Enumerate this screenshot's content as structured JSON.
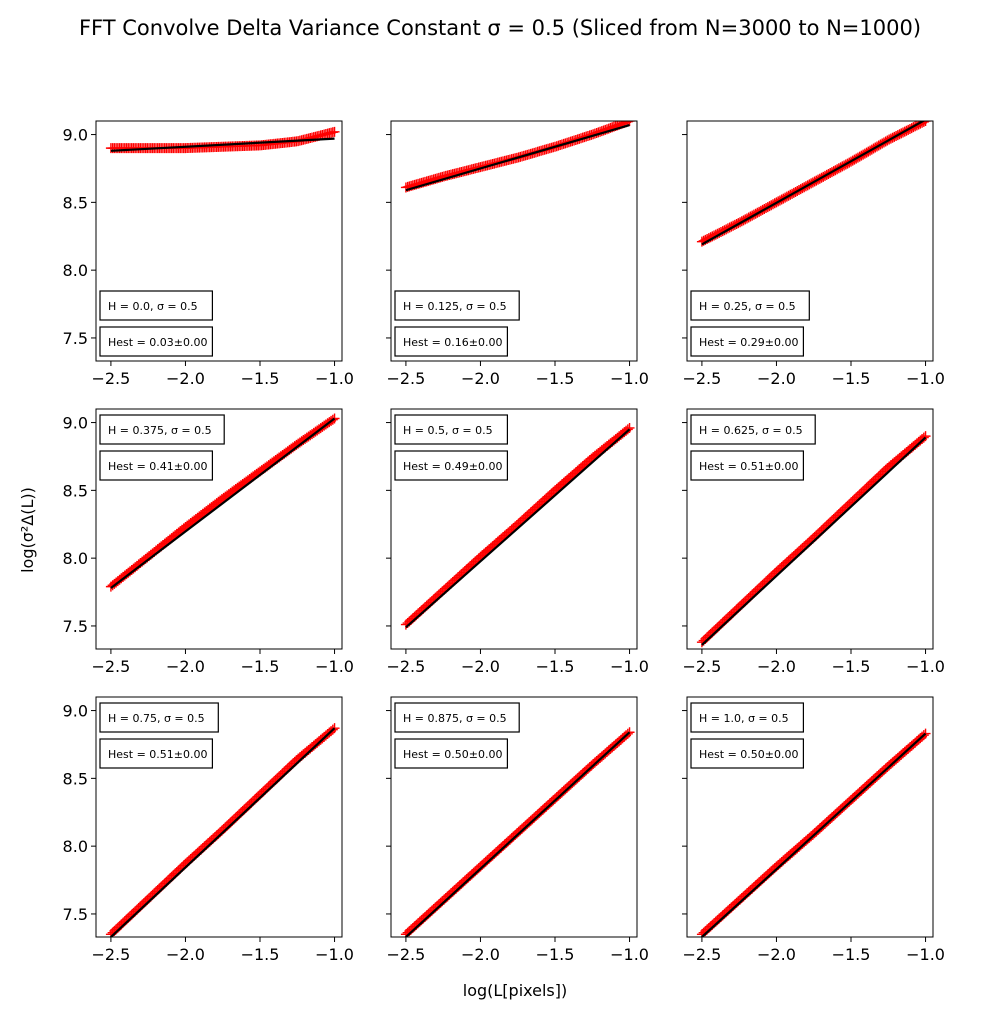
{
  "figure": {
    "title": "FFT Convolve Delta Variance Constant σ = 0.5 (Sliced from N=3000 to N=1000)",
    "xlabel": "log(L[pixels])",
    "ylabel": "log(σ²Δ(L))"
  },
  "colors": {
    "data": "#ff0000",
    "fit": "#000000",
    "axes": "#000000",
    "background": "#ffffff"
  },
  "chart_data": [
    {
      "type": "line",
      "marker": "+",
      "H_label": "H = 0.0, σ = 0.5",
      "Hest_label": "Hest = 0.03±0.00",
      "legend_position": "bottom-left",
      "x_range": [
        -2.5,
        -1.0
      ],
      "data_y": [
        8.9,
        8.9,
        8.9,
        8.91,
        8.92,
        8.95,
        9.02
      ],
      "fit_y": [
        8.88,
        8.97
      ],
      "xlim": [
        -2.6,
        -0.95
      ],
      "ylim": [
        7.33,
        9.1
      ]
    },
    {
      "type": "line",
      "marker": "+",
      "H_label": "H = 0.125, σ = 0.5",
      "Hest_label": "Hest = 0.16±0.00",
      "legend_position": "bottom-left",
      "x_range": [
        -2.5,
        -1.0
      ],
      "data_y": [
        8.61,
        8.69,
        8.76,
        8.83,
        8.91,
        9.0,
        9.1
      ],
      "fit_y": [
        8.59,
        9.07
      ],
      "xlim": [
        -2.6,
        -0.95
      ],
      "ylim": [
        7.33,
        9.1
      ]
    },
    {
      "type": "line",
      "marker": "+",
      "H_label": "H = 0.25, σ = 0.5",
      "Hest_label": "Hest = 0.29±0.00",
      "legend_position": "bottom-left",
      "x_range": [
        -2.5,
        -1.0
      ],
      "data_y": [
        8.21,
        8.35,
        8.5,
        8.65,
        8.8,
        8.96,
        9.1
      ],
      "fit_y": [
        8.19,
        9.11
      ],
      "xlim": [
        -2.6,
        -0.95
      ],
      "ylim": [
        7.33,
        9.1
      ]
    },
    {
      "type": "line",
      "marker": "+",
      "H_label": "H = 0.375, σ = 0.5",
      "Hest_label": "Hest = 0.41±0.00",
      "legend_position": "top-left",
      "x_range": [
        -2.5,
        -1.0
      ],
      "data_y": [
        7.79,
        8.01,
        8.23,
        8.44,
        8.64,
        8.84,
        9.03
      ],
      "fit_y": [
        7.78,
        9.03
      ],
      "xlim": [
        -2.6,
        -0.95
      ],
      "ylim": [
        7.33,
        9.1
      ]
    },
    {
      "type": "line",
      "marker": "+",
      "H_label": "H = 0.5, σ = 0.5",
      "Hest_label": "Hest = 0.49±0.00",
      "legend_position": "top-left",
      "x_range": [
        -2.5,
        -1.0
      ],
      "data_y": [
        7.51,
        7.76,
        8.01,
        8.25,
        8.5,
        8.74,
        8.96
      ],
      "fit_y": [
        7.49,
        8.95
      ],
      "xlim": [
        -2.6,
        -0.95
      ],
      "ylim": [
        7.33,
        9.1
      ]
    },
    {
      "type": "line",
      "marker": "+",
      "H_label": "H = 0.625, σ = 0.5",
      "Hest_label": "Hest = 0.51±0.00",
      "legend_position": "top-left",
      "x_range": [
        -2.5,
        -1.0
      ],
      "data_y": [
        7.38,
        7.64,
        7.9,
        8.15,
        8.41,
        8.67,
        8.9
      ],
      "fit_y": [
        7.36,
        8.89
      ],
      "xlim": [
        -2.6,
        -0.95
      ],
      "ylim": [
        7.33,
        9.1
      ]
    },
    {
      "type": "line",
      "marker": "+",
      "H_label": "H = 0.75, σ = 0.5",
      "Hest_label": "Hest = 0.51±0.00",
      "legend_position": "top-left",
      "x_range": [
        -2.5,
        -1.0
      ],
      "data_y": [
        7.35,
        7.61,
        7.87,
        8.12,
        8.38,
        8.64,
        8.87
      ],
      "fit_y": [
        7.33,
        8.87
      ],
      "xlim": [
        -2.6,
        -0.95
      ],
      "ylim": [
        7.33,
        9.1
      ]
    },
    {
      "type": "line",
      "marker": "+",
      "H_label": "H = 0.875, σ = 0.5",
      "Hest_label": "Hest = 0.50±0.00",
      "legend_position": "top-left",
      "x_range": [
        -2.5,
        -1.0
      ],
      "data_y": [
        7.35,
        7.6,
        7.85,
        8.1,
        8.35,
        8.6,
        8.84
      ],
      "fit_y": [
        7.33,
        8.84
      ],
      "xlim": [
        -2.6,
        -0.95
      ],
      "ylim": [
        7.33,
        9.1
      ]
    },
    {
      "type": "line",
      "marker": "+",
      "H_label": "H = 1.0, σ = 0.5",
      "Hest_label": "Hest = 0.50±0.00",
      "legend_position": "top-left",
      "x_range": [
        -2.5,
        -1.0
      ],
      "data_y": [
        7.35,
        7.6,
        7.85,
        8.09,
        8.34,
        8.59,
        8.83
      ],
      "fit_y": [
        7.33,
        8.83
      ],
      "xlim": [
        -2.6,
        -0.95
      ],
      "ylim": [
        7.33,
        9.1
      ]
    }
  ],
  "axes": {
    "xticks": [
      -2.5,
      -2.0,
      -1.5,
      -1.0
    ],
    "xtick_labels": [
      "−2.5",
      "−2.0",
      "−1.5",
      "−1.0"
    ],
    "yticks": [
      7.5,
      8.0,
      8.5,
      9.0
    ],
    "ytick_labels": [
      "7.5",
      "8.0",
      "8.5",
      "9.0"
    ]
  }
}
